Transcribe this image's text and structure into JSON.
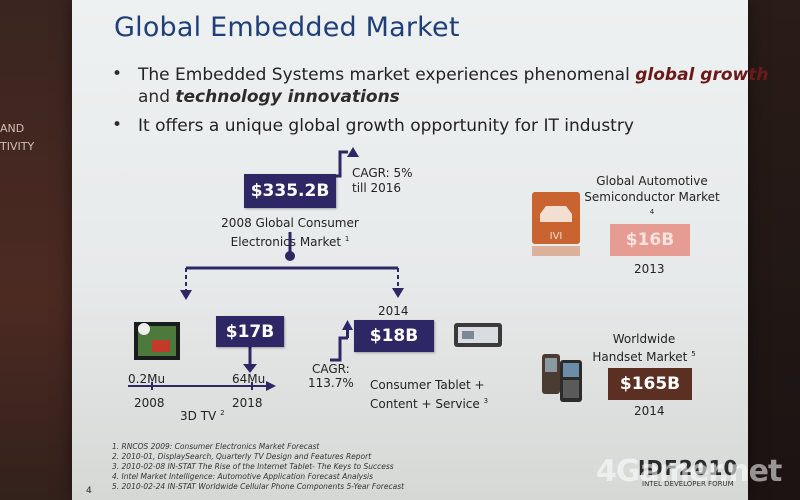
{
  "slide": {
    "title": "Global Embedded Market",
    "bullet1_pre": "The Embedded Systems market experiences phenomenal ",
    "bullet1_em1": "global growth",
    "bullet1_mid": " and ",
    "bullet1_em2": "technology innovations",
    "bullet2": "It offers a unique global growth opportunity for IT industry",
    "bullet_symbol": "•"
  },
  "consumer": {
    "value": "$335.2B",
    "label_line1": "2008 Global Consumer",
    "label_line2": "Electronics Market",
    "label_sup": "1",
    "cagr_line1": "CAGR: 5%",
    "cagr_line2": "till 2016"
  },
  "tv3d": {
    "value": "$17B",
    "units_start": "0.2Mu",
    "units_end": "64Mu",
    "year_start": "2008",
    "year_end": "2018",
    "label": "3D TV",
    "label_sup": "2"
  },
  "tablet": {
    "year": "2014",
    "value": "$18B",
    "cagr_line1": "CAGR:",
    "cagr_line2": "113.7%",
    "label_line1": "Consumer Tablet  +",
    "label_line2": "Content + Service",
    "label_sup": "3"
  },
  "automotive": {
    "label_line1": "Global Automotive",
    "label_line2": "Semiconductor Market",
    "label_sup": "4",
    "icon_text": "IVI",
    "value": "$16B",
    "year": "2013"
  },
  "handset": {
    "label_line1": "Worldwide",
    "label_line2": "Handset Market",
    "label_sup": "5",
    "value": "$165B",
    "year": "2014"
  },
  "footnotes": [
    "1.   RNCOS 2009: Consumer Electronics Market Forecast",
    "2.   2010-01, DisplaySearch, Quarterly TV Design and Features Report",
    "3.   2010-02-08 IN-STAT The Rise of the Internet Tablet- The Keys to Success",
    "4.   Intel Market Intelligence: Automotive Application Forecast Analysis",
    "5.   2010-02-24 IN-STAT Worldwide Cellular Phone Components 5-Year Forecast"
  ],
  "branding": {
    "idf": "IDF2010",
    "idf_sub": "INTEL DEVELOPER FORUM",
    "watermark": "4Gamer.net",
    "page_num": "4"
  },
  "wall": {
    "doodle1": "AND",
    "doodle2": "TIVITY"
  },
  "colors": {
    "navy": "#2d2766",
    "brown": "#5b2f21",
    "pink": "#e79c93",
    "title_blue": "#1f3f7a",
    "automotive_orange": "#c9632f"
  }
}
